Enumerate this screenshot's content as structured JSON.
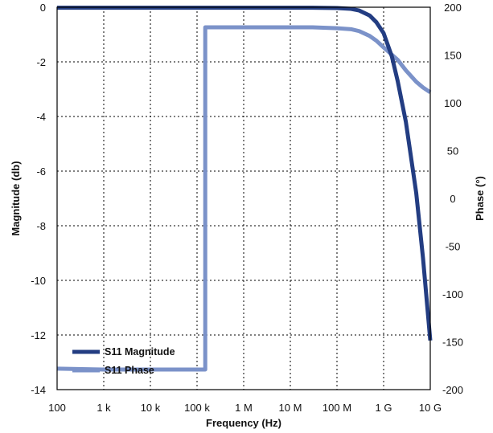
{
  "chart_data": {
    "type": "line",
    "xlabel": "Frequency (Hz)",
    "ylabel_left": "Magnitude (db)",
    "ylabel_right": "Phase (°)",
    "x_scale": "log",
    "xlim": [
      100,
      10000000000
    ],
    "ylim_left": [
      -14,
      0
    ],
    "ylim_right": [
      -200,
      200
    ],
    "grid": true,
    "x_ticks": [
      {
        "value": 100,
        "label": "100"
      },
      {
        "value": 1000,
        "label": "1 k"
      },
      {
        "value": 10000,
        "label": "10 k"
      },
      {
        "value": 100000,
        "label": "100 k"
      },
      {
        "value": 1000000,
        "label": "1 M"
      },
      {
        "value": 10000000,
        "label": "10 M"
      },
      {
        "value": 100000000,
        "label": "100 M"
      },
      {
        "value": 1000000000,
        "label": "1 G"
      },
      {
        "value": 10000000000,
        "label": "10 G"
      }
    ],
    "y_ticks_left": [
      {
        "value": 0,
        "label": "0"
      },
      {
        "value": -2,
        "label": "-2"
      },
      {
        "value": -4,
        "label": "-4"
      },
      {
        "value": -6,
        "label": "-6"
      },
      {
        "value": -8,
        "label": "-8"
      },
      {
        "value": -10,
        "label": "-10"
      },
      {
        "value": -12,
        "label": "-12"
      },
      {
        "value": -14,
        "label": "-14"
      }
    ],
    "y_ticks_right": [
      {
        "value": 200,
        "label": "200"
      },
      {
        "value": 150,
        "label": "150"
      },
      {
        "value": 100,
        "label": "100"
      },
      {
        "value": 50,
        "label": "50"
      },
      {
        "value": 0,
        "label": "0"
      },
      {
        "value": -50,
        "label": "-50"
      },
      {
        "value": -100,
        "label": "-100"
      },
      {
        "value": -150,
        "label": "-150"
      },
      {
        "value": -200,
        "label": "-200"
      }
    ],
    "legend_position": "bottom-left",
    "series": [
      {
        "name": "S11 Magnitude",
        "axis": "left",
        "color": "#233d82",
        "x": [
          100,
          1000,
          10000,
          100000,
          1000000,
          10000000,
          30000000,
          100000000,
          200000000,
          300000000,
          500000000,
          700000000,
          1000000000,
          1500000000,
          2000000000,
          3000000000,
          5000000000,
          7000000000,
          10000000000
        ],
        "y": [
          -0.02,
          -0.02,
          -0.02,
          -0.02,
          -0.02,
          -0.02,
          -0.02,
          -0.03,
          -0.06,
          -0.12,
          -0.3,
          -0.55,
          -0.95,
          -1.8,
          -2.7,
          -4.2,
          -6.8,
          -9.2,
          -12.2
        ]
      },
      {
        "name": "S11 Phase",
        "axis": "right",
        "color": "#7b92c9",
        "x": [
          100,
          1000,
          10000,
          100000,
          150000,
          150000,
          1000000,
          10000000,
          30000000,
          100000000,
          200000000,
          300000000,
          500000000,
          700000000,
          1000000000,
          2000000000,
          3000000000,
          5000000000,
          7000000000,
          10000000000
        ],
        "y": [
          -178,
          -179,
          -179,
          -179,
          -179,
          179,
          179,
          179,
          179,
          178,
          177,
          175,
          170,
          165,
          158,
          145,
          134,
          122,
          116,
          111
        ]
      }
    ]
  }
}
